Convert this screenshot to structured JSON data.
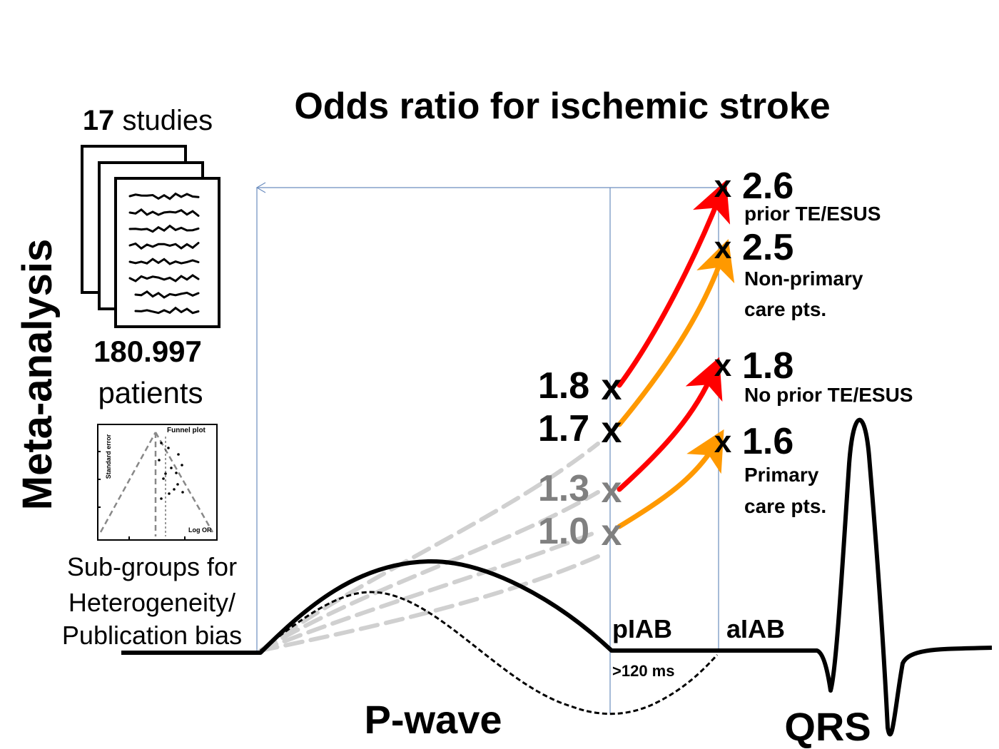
{
  "title": "Odds ratio for ischemic stroke",
  "meta_label": "Meta-analysis",
  "studies": {
    "count": "17",
    "word": "studies"
  },
  "patients": {
    "count": "180.997",
    "word": "patients"
  },
  "funnel": {
    "title": "Funnel plot",
    "ylabel": "Standard error",
    "xlabel": "Log OR"
  },
  "subgroups": [
    "Sub-groups for",
    "Heterogeneity/",
    "Publication bias"
  ],
  "baseline_odds": [
    {
      "value": "1.8",
      "x": "x"
    },
    {
      "value": "1.7",
      "x": "x"
    },
    {
      "value": "1.3",
      "x": "x"
    },
    {
      "value": "1.0",
      "x": "x"
    }
  ],
  "outcomes": [
    {
      "x": "x",
      "value": "2.6",
      "label": [
        "prior TE/ESUS"
      ]
    },
    {
      "x": "x",
      "value": "2.5",
      "label": [
        "Non-primary",
        "care pts."
      ]
    },
    {
      "x": "x",
      "value": "1.8",
      "label": [
        "No prior TE/ESUS"
      ]
    },
    {
      "x": "x",
      "value": "1.6",
      "label": [
        "Primary",
        "care pts."
      ]
    }
  ],
  "markers": {
    "piab": "pIAB",
    "aiab": "aIAB",
    "duration": ">120 ms"
  },
  "waves": {
    "p": "P-wave",
    "qrs": "QRS"
  },
  "colors": {
    "red": "#ff0000",
    "orange": "#ff9900",
    "grey": "#808080",
    "dashed": "#d0d0d0",
    "guide": "#6c8ebf"
  }
}
